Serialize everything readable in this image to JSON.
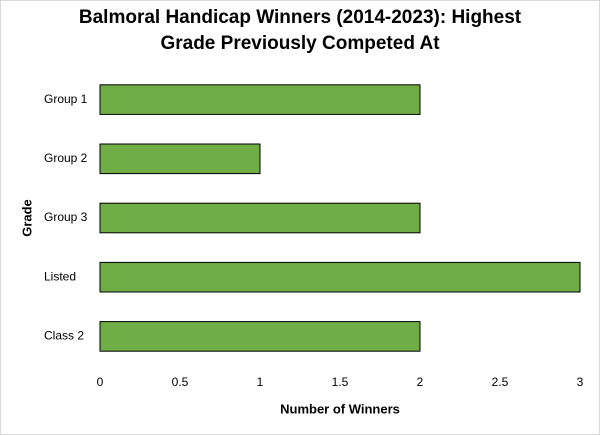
{
  "chart_data": {
    "type": "hbar",
    "title": [
      "Balmoral Handicap Winners (2014-2023): Highest",
      "Grade Previously Competed At"
    ],
    "x_label": "Number of Winners",
    "y_label": "Grade",
    "categories": [
      "Group 1",
      "Group 2",
      "Group 3",
      "Listed",
      "Class 2"
    ],
    "values": [
      2,
      1,
      2,
      3,
      2
    ],
    "color": "#70ad47",
    "xlim": [
      0,
      3
    ],
    "xticks": [
      0,
      0.5,
      1,
      1.5,
      2,
      2.5,
      3
    ],
    "grid": false
  }
}
